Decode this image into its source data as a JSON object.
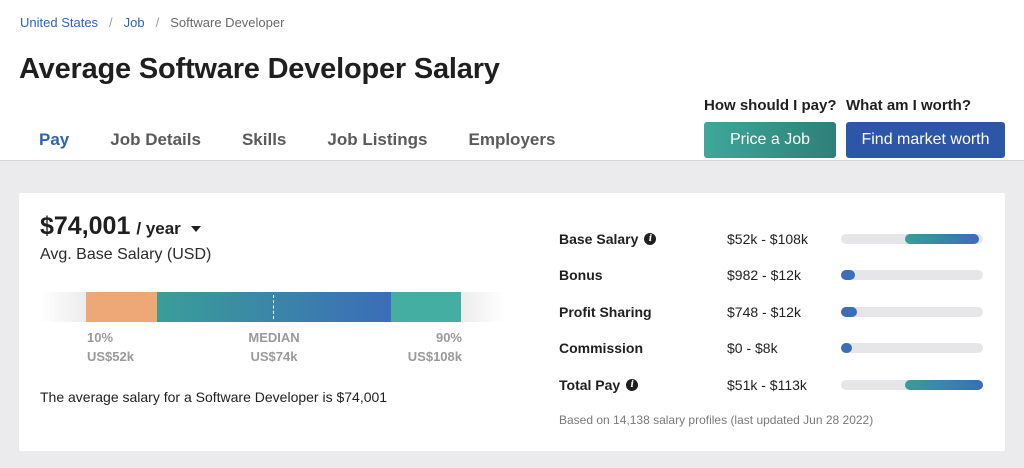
{
  "breadcrumb": {
    "items": [
      {
        "label": "United States"
      },
      {
        "label": "Job"
      },
      {
        "label": "Software Developer"
      }
    ],
    "separator": "/"
  },
  "page_title": "Average Software Developer Salary",
  "tabs": [
    {
      "label": "Pay",
      "active": true
    },
    {
      "label": "Job Details",
      "active": false
    },
    {
      "label": "Skills",
      "active": false
    },
    {
      "label": "Job Listings",
      "active": false
    },
    {
      "label": "Employers",
      "active": false
    }
  ],
  "cta": {
    "price": {
      "question": "How should I pay?",
      "button": "Price a Job"
    },
    "worth": {
      "question": "What am I worth?",
      "button": "Find market worth"
    }
  },
  "salary": {
    "amount": "$74,001",
    "period": "/ year",
    "label": "Avg. Base Salary (USD)",
    "percentiles": {
      "p10": {
        "title": "10%",
        "value": "US$52k"
      },
      "median": {
        "title": "MEDIAN",
        "value": "US$74k"
      },
      "p90": {
        "title": "90%",
        "value": "US$108k"
      }
    },
    "summary": "The average salary for a Software Developer is $74,001"
  },
  "compensation": [
    {
      "name": "Base Salary",
      "range": "$52k - $108k",
      "info": true,
      "fill_start": 0.45,
      "fill_end": 0.97
    },
    {
      "name": "Bonus",
      "range": "$982 - $12k",
      "info": false,
      "fill_start": 0.0,
      "fill_end": 0.1
    },
    {
      "name": "Profit Sharing",
      "range": "$748 - $12k",
      "info": false,
      "fill_start": 0.0,
      "fill_end": 0.11
    },
    {
      "name": "Commission",
      "range": "$0 - $8k",
      "info": false,
      "fill_start": 0.0,
      "fill_end": 0.06
    },
    {
      "name": "Total Pay",
      "range": "$51k - $113k",
      "info": true,
      "fill_start": 0.45,
      "fill_end": 1.0
    }
  ],
  "footnote": "Based on 14,138 salary profiles (last updated Jun 28 2022)",
  "colors": {
    "link_blue": "#2f63b8",
    "teal": "#3ea89a",
    "navy_button": "#2c56a6",
    "orange_segment": "#eca877"
  }
}
